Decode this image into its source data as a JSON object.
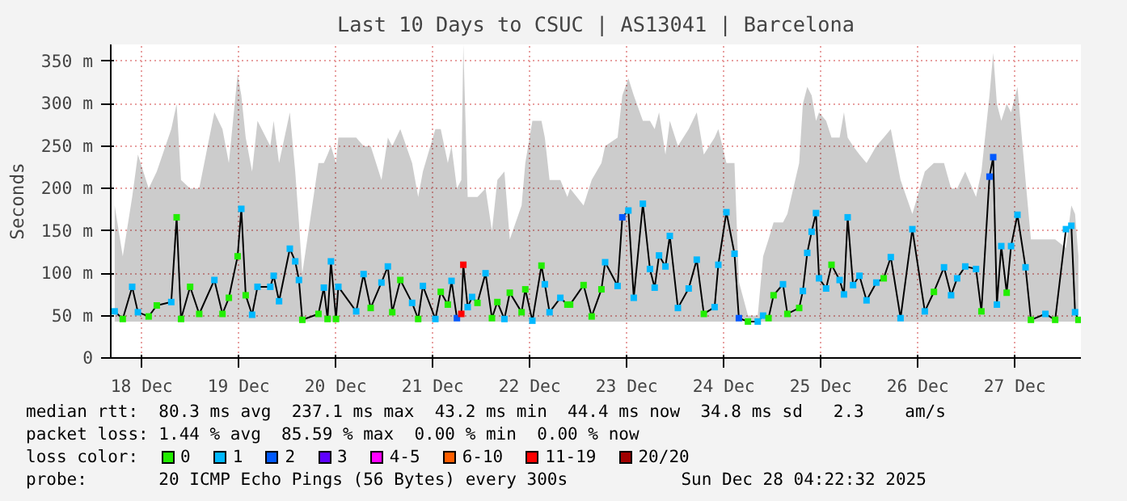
{
  "chart_data": {
    "type": "line",
    "title": "Last 10 Days to CSUC | AS13041 | Barcelona",
    "ylabel": "Seconds",
    "legend_title": "loss color:",
    "annotations": [
      "median rtt:  80.3 ms avg  237.1 ms max  43.2 ms min  44.4 ms now  34.8 ms sd   2.3    am/s",
      "packet loss: 1.44 % avg  85.59 % max  0.00 % min  0.00 % now",
      "probe:       20 ICMP Echo Pings (56 Bytes) every 300s",
      "Sun Dec 28 04:22:32 2025"
    ],
    "xlim": [
      "2025-12-18T04:22",
      "2025-12-28T04:22"
    ],
    "xticks": [
      {
        "value": "2025-12-18T12:00",
        "label": "18 Dec"
      },
      {
        "value": "2025-12-19T12:00",
        "label": "19 Dec"
      },
      {
        "value": "2025-12-20T12:00",
        "label": "20 Dec"
      },
      {
        "value": "2025-12-21T12:00",
        "label": "21 Dec"
      },
      {
        "value": "2025-12-22T12:00",
        "label": "22 Dec"
      },
      {
        "value": "2025-12-23T12:00",
        "label": "23 Dec"
      },
      {
        "value": "2025-12-24T12:00",
        "label": "24 Dec"
      },
      {
        "value": "2025-12-25T12:00",
        "label": "25 Dec"
      },
      {
        "value": "2025-12-26T12:00",
        "label": "26 Dec"
      },
      {
        "value": "2025-12-27T12:00",
        "label": "27 Dec"
      }
    ],
    "ylim": [
      0,
      370
    ],
    "yticks": [
      0,
      {
        "value": 50,
        "label": "50 m"
      },
      {
        "value": 100,
        "label": "100 m"
      },
      {
        "value": 150,
        "label": "150 m"
      },
      {
        "value": 200,
        "label": "200 m"
      },
      {
        "value": 250,
        "label": "250 m"
      },
      {
        "value": 300,
        "label": "300 m"
      },
      {
        "value": 350,
        "label": "350 m"
      }
    ],
    "grid": true,
    "legend": "bottom",
    "marker": "square",
    "series": [
      {
        "color": "#000000",
        "x": [
          "2025-12-18T05:20",
          "2025-12-18T07:20",
          "2025-12-18T09:40",
          "2025-12-18T11:05",
          "2025-12-18T13:45",
          "2025-12-18T15:45",
          "2025-12-18T19:20",
          "2025-12-18T20:40",
          "2025-12-18T21:45",
          "2025-12-19T00:00",
          "2025-12-19T02:15",
          "2025-12-19T06:00",
          "2025-12-19T08:00",
          "2025-12-19T09:35",
          "2025-12-19T11:45",
          "2025-12-19T12:40",
          "2025-12-19T13:45",
          "2025-12-19T15:20",
          "2025-12-19T16:40",
          "2025-12-19T19:50",
          "2025-12-19T20:40",
          "2025-12-19T22:00",
          "2025-12-20T00:40",
          "2025-12-20T02:00",
          "2025-12-20T02:55",
          "2025-12-20T03:45",
          "2025-12-20T07:45",
          "2025-12-20T09:05",
          "2025-12-20T10:00",
          "2025-12-20T10:50",
          "2025-12-20T12:05",
          "2025-12-20T12:40",
          "2025-12-20T17:05",
          "2025-12-20T18:55",
          "2025-12-20T20:40",
          "2025-12-20T23:20",
          "2025-12-21T00:55",
          "2025-12-21T02:00",
          "2025-12-21T04:00",
          "2025-12-21T06:55",
          "2025-12-21T08:25",
          "2025-12-21T09:35",
          "2025-12-21T12:40",
          "2025-12-21T14:00",
          "2025-12-21T15:45",
          "2025-12-21T16:40",
          "2025-12-21T18:00",
          "2025-12-21T19:05",
          "2025-12-21T19:35",
          "2025-12-21T20:40",
          "2025-12-21T21:45",
          "2025-12-21T23:05",
          "2025-12-22T01:05",
          "2025-12-22T02:40",
          "2025-12-22T04:00",
          "2025-12-22T05:45",
          "2025-12-22T07:05",
          "2025-12-22T10:00",
          "2025-12-22T10:55",
          "2025-12-22T12:40",
          "2025-12-22T14:55",
          "2025-12-22T15:45",
          "2025-12-22T16:55",
          "2025-12-22T19:35",
          "2025-12-22T21:20",
          "2025-12-22T22:00",
          "2025-12-23T01:20",
          "2025-12-23T03:20",
          "2025-12-23T05:45",
          "2025-12-23T06:40",
          "2025-12-23T09:45",
          "2025-12-23T10:55",
          "2025-12-23T12:25",
          "2025-12-23T13:45",
          "2025-12-23T16:00",
          "2025-12-23T17:45",
          "2025-12-23T18:55",
          "2025-12-23T20:00",
          "2025-12-23T21:35",
          "2025-12-23T22:40",
          "2025-12-24T00:40",
          "2025-12-24T03:20",
          "2025-12-24T05:20",
          "2025-12-24T07:05",
          "2025-12-24T09:45",
          "2025-12-24T10:40",
          "2025-12-24T12:40",
          "2025-12-24T14:40",
          "2025-12-24T15:45",
          "2025-12-24T18:00",
          "2025-12-24T20:25",
          "2025-12-24T21:45",
          "2025-12-24T23:05",
          "2025-12-25T00:20",
          "2025-12-25T02:40",
          "2025-12-25T03:45",
          "2025-12-25T06:40",
          "2025-12-25T07:35",
          "2025-12-25T08:40",
          "2025-12-25T09:45",
          "2025-12-25T10:50",
          "2025-12-25T11:35",
          "2025-12-25T13:20",
          "2025-12-25T14:40",
          "2025-12-25T16:40",
          "2025-12-25T17:45",
          "2025-12-25T18:40",
          "2025-12-25T20:00",
          "2025-12-25T21:35",
          "2025-12-25T23:20",
          "2025-12-26T01:45",
          "2025-12-26T03:35",
          "2025-12-26T05:20",
          "2025-12-26T07:45",
          "2025-12-26T10:40",
          "2025-12-26T13:45",
          "2025-12-26T16:00",
          "2025-12-26T18:30",
          "2025-12-26T20:15",
          "2025-12-26T21:45",
          "2025-12-26T23:45",
          "2025-12-27T02:25",
          "2025-12-27T03:45",
          "2025-12-27T05:45",
          "2025-12-27T06:40",
          "2025-12-27T07:35",
          "2025-12-27T08:40",
          "2025-12-27T10:00",
          "2025-12-27T11:05",
          "2025-12-27T12:40",
          "2025-12-27T14:40",
          "2025-12-27T16:00",
          "2025-12-27T19:35",
          "2025-12-27T22:00",
          "2025-12-28T00:40",
          "2025-12-28T02:00",
          "2025-12-28T02:55",
          "2025-12-28T03:45"
        ],
        "values": [
          55,
          46,
          84,
          54,
          49,
          62,
          66,
          166,
          46,
          84,
          52,
          92,
          52,
          71,
          120,
          176,
          74,
          51,
          84,
          84,
          97,
          67,
          129,
          114,
          92,
          45,
          52,
          83,
          46,
          114,
          46,
          84,
          55,
          99,
          59,
          89,
          108,
          54,
          92,
          65,
          46,
          85,
          46,
          78,
          63,
          91,
          47,
          52,
          110,
          60,
          72,
          65,
          100,
          47,
          66,
          46,
          77,
          54,
          81,
          44,
          109,
          87,
          54,
          71,
          63,
          63,
          86,
          49,
          81,
          113,
          85,
          166,
          174,
          71,
          182,
          105,
          83,
          121,
          108,
          144,
          59,
          82,
          116,
          52,
          60,
          110,
          172,
          123,
          47,
          43,
          43,
          50,
          47,
          74,
          87,
          52,
          59,
          79,
          124,
          149,
          171,
          94,
          82,
          110,
          92,
          75,
          166,
          86,
          97,
          68,
          89,
          94,
          119,
          47,
          152,
          55,
          78,
          107,
          74,
          94,
          108,
          105,
          55,
          214,
          237,
          63,
          132,
          77,
          132,
          169,
          107,
          45,
          52,
          45,
          152,
          156,
          54,
          45
        ],
        "lower": [
          43,
          43,
          43,
          43,
          43,
          43,
          43,
          43,
          43,
          43,
          43,
          43,
          43,
          43,
          43,
          43,
          43,
          43,
          43,
          43,
          43,
          43,
          43,
          43,
          43,
          43,
          43,
          43,
          43,
          43,
          43,
          43,
          43,
          43,
          43,
          43,
          43,
          43,
          43,
          43,
          43,
          43,
          43,
          43,
          43,
          43,
          43,
          43,
          43,
          43,
          43,
          43,
          43,
          43,
          43,
          43,
          43,
          43,
          43,
          43,
          43,
          43,
          43,
          43,
          43,
          43,
          43,
          43,
          43,
          43,
          43,
          43,
          43,
          43,
          43,
          43,
          43,
          43,
          43,
          43,
          43,
          43,
          43,
          43,
          43,
          43,
          43,
          43,
          43,
          43,
          43,
          43,
          43,
          43,
          43,
          43,
          43,
          43,
          43,
          43,
          43,
          43,
          43,
          43,
          43,
          43,
          43,
          43,
          43,
          43,
          43,
          43,
          43,
          43,
          43,
          43,
          43,
          43,
          43,
          43,
          43,
          43,
          43,
          43,
          43,
          43,
          43,
          43,
          43,
          43,
          43,
          43,
          43,
          43,
          43,
          43,
          43,
          43
        ],
        "upper": [
          180,
          120,
          190,
          240,
          200,
          220,
          270,
          300,
          210,
          200,
          200,
          290,
          270,
          230,
          335,
          310,
          260,
          220,
          280,
          250,
          280,
          230,
          290,
          220,
          160,
          100,
          230,
          230,
          240,
          250,
          230,
          260,
          260,
          250,
          250,
          210,
          260,
          250,
          270,
          230,
          190,
          220,
          270,
          270,
          230,
          250,
          200,
          210,
          370,
          190,
          190,
          190,
          200,
          150,
          210,
          220,
          140,
          180,
          230,
          280,
          280,
          260,
          210,
          210,
          190,
          200,
          180,
          210,
          230,
          250,
          260,
          310,
          330,
          310,
          280,
          280,
          270,
          290,
          240,
          280,
          250,
          270,
          290,
          240,
          260,
          270,
          230,
          230,
          90,
          50,
          50,
          120,
          140,
          160,
          160,
          170,
          230,
          300,
          320,
          310,
          280,
          290,
          280,
          260,
          260,
          290,
          260,
          250,
          240,
          230,
          250,
          260,
          270,
          210,
          170,
          220,
          230,
          230,
          200,
          200,
          220,
          190,
          220,
          310,
          360,
          300,
          280,
          300,
          290,
          320,
          210,
          140,
          140,
          140,
          130,
          180,
          170,
          120
        ],
        "colors": [
          "#00b8ff",
          "#22ee00",
          "#00b8ff",
          "#00b8ff",
          "#22ee00",
          "#22ee00",
          "#00b8ff",
          "#22ee00",
          "#22ee00",
          "#22ee00",
          "#22ee00",
          "#00b8ff",
          "#22ee00",
          "#22ee00",
          "#22ee00",
          "#00b8ff",
          "#22ee00",
          "#00b8ff",
          "#00b8ff",
          "#00b8ff",
          "#00b8ff",
          "#00b8ff",
          "#00b8ff",
          "#00b8ff",
          "#00b8ff",
          "#22ee00",
          "#22ee00",
          "#00b8ff",
          "#22ee00",
          "#00b8ff",
          "#22ee00",
          "#00b8ff",
          "#00b8ff",
          "#00b8ff",
          "#22ee00",
          "#00b8ff",
          "#00b8ff",
          "#22ee00",
          "#22ee00",
          "#00b8ff",
          "#22ee00",
          "#00b8ff",
          "#00b8ff",
          "#22ee00",
          "#22ee00",
          "#00b8ff",
          "#0059ff",
          "#ff0000",
          "#ff0000",
          "#00b8ff",
          "#00b8ff",
          "#22ee00",
          "#00b8ff",
          "#22ee00",
          "#22ee00",
          "#00b8ff",
          "#22ee00",
          "#22ee00",
          "#22ee00",
          "#00b8ff",
          "#22ee00",
          "#00b8ff",
          "#00b8ff",
          "#00b8ff",
          "#22ee00",
          "#22ee00",
          "#22ee00",
          "#22ee00",
          "#22ee00",
          "#00b8ff",
          "#00b8ff",
          "#0059ff",
          "#00b8ff",
          "#00b8ff",
          "#00b8ff",
          "#00b8ff",
          "#00b8ff",
          "#00b8ff",
          "#00b8ff",
          "#00b8ff",
          "#00b8ff",
          "#00b8ff",
          "#00b8ff",
          "#22ee00",
          "#00b8ff",
          "#00b8ff",
          "#00b8ff",
          "#00b8ff",
          "#0059ff",
          "#22ee00",
          "#00b8ff",
          "#00b8ff",
          "#22ee00",
          "#22ee00",
          "#00b8ff",
          "#22ee00",
          "#22ee00",
          "#00b8ff",
          "#00b8ff",
          "#00b8ff",
          "#00b8ff",
          "#00b8ff",
          "#00b8ff",
          "#22ee00",
          "#00b8ff",
          "#00b8ff",
          "#00b8ff",
          "#00b8ff",
          "#00b8ff",
          "#00b8ff",
          "#00b8ff",
          "#22ee00",
          "#00b8ff",
          "#00b8ff",
          "#00b8ff",
          "#00b8ff",
          "#22ee00",
          "#00b8ff",
          "#00b8ff",
          "#00b8ff",
          "#00b8ff",
          "#00b8ff",
          "#22ee00",
          "#0059ff",
          "#0059ff",
          "#00b8ff",
          "#00b8ff",
          "#22ee00",
          "#00b8ff",
          "#00b8ff",
          "#00b8ff",
          "#22ee00",
          "#00b8ff",
          "#22ee00",
          "#00b8ff",
          "#00b8ff",
          "#00b8ff",
          "#22ee00"
        ]
      },
      {
        "name": "0",
        "color": "#22ee00"
      },
      {
        "name": "1",
        "color": "#00b8ff"
      },
      {
        "name": "2",
        "color": "#0059ff"
      },
      {
        "name": "3",
        "color": "#5e00ff"
      },
      {
        "name": "4-5",
        "color": "#ff00ff"
      },
      {
        "name": "6-10",
        "color": "#ff5e00"
      },
      {
        "name": "11-19",
        "color": "#ff0000"
      },
      {
        "name": "20/20",
        "color": "#a10000"
      }
    ]
  }
}
